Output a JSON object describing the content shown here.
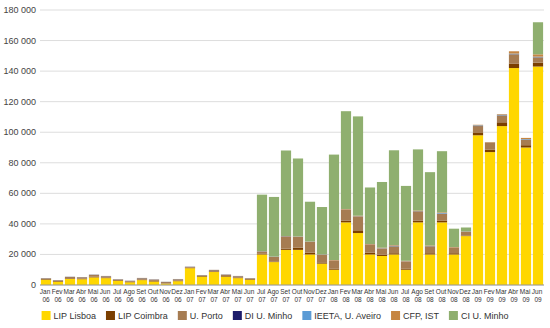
{
  "chart_data": {
    "type": "bar",
    "stacked": true,
    "grid": true,
    "legend": "bottom",
    "categories": [
      "Jan 06",
      "Fev 06",
      "Mar 06",
      "Abr 06",
      "Mai 06",
      "Jun 06",
      "Jul 06",
      "Ago 06",
      "Set 06",
      "Out 06",
      "Nov 06",
      "Dez 06",
      "Jan 07",
      "Fev 07",
      "Mar 07",
      "Abr 07",
      "Mai 07",
      "Jun 07",
      "Jul 07",
      "Ago 07",
      "Set 07",
      "Out 07",
      "Nov 07",
      "Dez 07",
      "Jan 08",
      "Fev 08",
      "Mar 08",
      "Abr 08",
      "Mai 08",
      "Jun 08",
      "Jul 08",
      "Ago 08",
      "Set 08",
      "Out 08",
      "Nov 08",
      "Dez 08",
      "Jan 09",
      "Fev 09",
      "Mar 09",
      "Abr 09",
      "Mai 09",
      "Jun 09"
    ],
    "series": [
      {
        "name": "LIP Lisboa",
        "color": "#FFD700",
        "values": [
          3500,
          2200,
          4000,
          3800,
          5000,
          4500,
          2800,
          1800,
          3200,
          2300,
          900,
          2500,
          11000,
          5500,
          8500,
          5500,
          4500,
          3500,
          20000,
          15000,
          23000,
          23000,
          20000,
          14000,
          10000,
          41000,
          34000,
          20000,
          19000,
          20000,
          10000,
          41000,
          20000,
          41000,
          20000,
          32000,
          98000,
          87000,
          104000,
          142000,
          90000,
          143000
        ]
      },
      {
        "name": "LIP Coimbra",
        "color": "#7B3F00",
        "values": [
          400,
          400,
          400,
          400,
          400,
          400,
          400,
          400,
          400,
          400,
          200,
          400,
          400,
          400,
          400,
          400,
          400,
          400,
          400,
          400,
          800,
          1500,
          1200,
          800,
          800,
          1200,
          1800,
          1200,
          800,
          800,
          800,
          1200,
          800,
          1200,
          800,
          400,
          1500,
          1500,
          2500,
          3000,
          1500,
          2500
        ]
      },
      {
        "name": "U. Porto",
        "color": "#A67C52",
        "values": [
          400,
          400,
          800,
          800,
          1200,
          800,
          400,
          400,
          800,
          800,
          800,
          800,
          400,
          400,
          800,
          800,
          800,
          400,
          1500,
          3000,
          8000,
          7000,
          7000,
          5000,
          5000,
          7000,
          9000,
          5000,
          4000,
          4500,
          4500,
          6000,
          4500,
          4500,
          3500,
          2500,
          4500,
          4500,
          4500,
          6000,
          3500,
          3500
        ]
      },
      {
        "name": "DI U. Minho",
        "color": "#1C1C6B",
        "values": [
          80,
          80,
          80,
          80,
          80,
          80,
          80,
          80,
          80,
          80,
          80,
          80,
          80,
          80,
          80,
          80,
          80,
          80,
          80,
          80,
          80,
          80,
          80,
          80,
          80,
          80,
          80,
          150,
          80,
          80,
          80,
          80,
          80,
          80,
          80,
          80,
          80,
          80,
          80,
          80,
          80,
          80
        ]
      },
      {
        "name": "IEETA, U. Aveiro",
        "color": "#5B9BD5",
        "values": [
          80,
          80,
          80,
          80,
          80,
          80,
          80,
          80,
          80,
          80,
          80,
          80,
          80,
          80,
          80,
          80,
          80,
          80,
          80,
          80,
          80,
          80,
          80,
          80,
          80,
          80,
          80,
          80,
          150,
          400,
          80,
          80,
          80,
          400,
          80,
          80,
          400,
          80,
          400,
          400,
          400,
          400
        ]
      },
      {
        "name": "CFP, IST",
        "color": "#C68642",
        "values": [
          80,
          80,
          80,
          80,
          80,
          80,
          80,
          80,
          80,
          80,
          80,
          80,
          80,
          80,
          80,
          80,
          80,
          80,
          80,
          80,
          80,
          150,
          150,
          80,
          400,
          400,
          400,
          400,
          400,
          400,
          400,
          400,
          400,
          400,
          400,
          80,
          400,
          400,
          400,
          1500,
          800,
          1500
        ]
      },
      {
        "name": "CI U. Minho",
        "color": "#8FAF6F",
        "values": [
          0,
          0,
          0,
          0,
          0,
          0,
          0,
          0,
          0,
          0,
          0,
          0,
          0,
          0,
          0,
          0,
          0,
          0,
          37000,
          39000,
          56000,
          51000,
          26000,
          31000,
          69000,
          64000,
          65000,
          37000,
          43000,
          62000,
          49000,
          40000,
          48000,
          40000,
          12000,
          2500,
          0,
          0,
          0,
          0,
          0,
          21000
        ]
      }
    ],
    "ylim": [
      0,
      180000
    ],
    "yticks": [
      0,
      {
        "value": 20000,
        "label": "20 000"
      },
      {
        "value": 40000,
        "label": "40 000"
      },
      {
        "value": 60000,
        "label": "60 000"
      },
      {
        "value": 80000,
        "label": "80 000"
      },
      {
        "value": 100000,
        "label": "100 000"
      },
      {
        "value": 120000,
        "label": "120 000"
      },
      {
        "value": 140000,
        "label": "140 000"
      },
      {
        "value": 160000,
        "label": "160 000"
      },
      {
        "value": 180000,
        "label": "180 000"
      }
    ]
  }
}
